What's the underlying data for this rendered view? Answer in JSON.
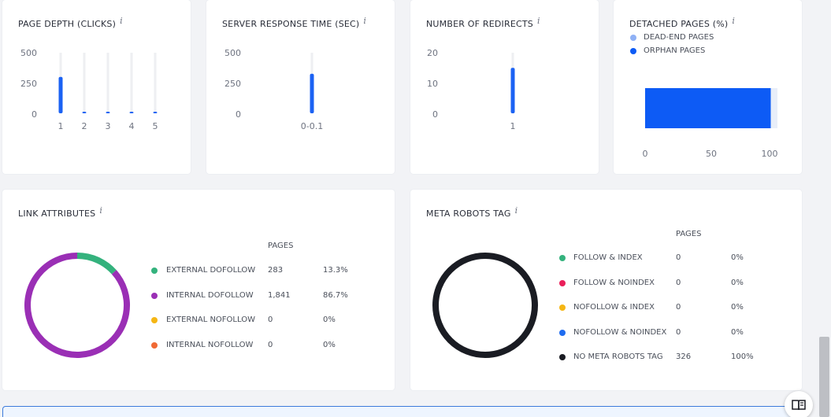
{
  "page_depth": {
    "title": "PAGE DEPTH (CLICKS)",
    "info": "i",
    "y_ticks": [
      "500",
      "250",
      "0"
    ],
    "chart_data": {
      "type": "bar",
      "title": "PAGE DEPTH (CLICKS)",
      "categories": [
        "1",
        "2",
        "3",
        "4",
        "5"
      ],
      "values": [
        300,
        4,
        4,
        4,
        4
      ],
      "ylim": [
        0,
        500
      ],
      "grid": false
    }
  },
  "server_response": {
    "title": "SERVER RESPONSE TIME (SEC)",
    "info": "i",
    "y_ticks": [
      "500",
      "250",
      "0"
    ],
    "chart_data": {
      "type": "bar",
      "title": "SERVER RESPONSE TIME (SEC)",
      "categories": [
        "0-0.1"
      ],
      "values": [
        326
      ],
      "ylim": [
        0,
        500
      ],
      "grid": false
    }
  },
  "redirects": {
    "title": "NUMBER OF REDIRECTS",
    "info": "i",
    "y_ticks": [
      "20",
      "10",
      "0"
    ],
    "chart_data": {
      "type": "bar",
      "title": "NUMBER OF REDIRECTS",
      "categories": [
        "1"
      ],
      "values": [
        15
      ],
      "ylim": [
        0,
        20
      ],
      "grid": false
    }
  },
  "detached": {
    "title": "DETACHED PAGES (%)",
    "info": "i",
    "legend": [
      {
        "label": "DEAD-END PAGES",
        "color": "#8fb1f5"
      },
      {
        "label": "ORPHAN PAGES",
        "color": "#0d5bf5"
      }
    ],
    "x_ticks": [
      "0",
      "50",
      "100"
    ],
    "chart_data": {
      "type": "bar",
      "orientation": "horizontal",
      "title": "DETACHED PAGES (%)",
      "series": [
        {
          "name": "DEAD-END PAGES",
          "values": [
            5
          ]
        },
        {
          "name": "ORPHAN PAGES",
          "values": [
            95
          ]
        }
      ],
      "xlim": [
        0,
        100
      ],
      "legend_position": "top-left"
    }
  },
  "link_attributes": {
    "title": "LINK ATTRIBUTES",
    "info": "i",
    "pages_header": "PAGES",
    "rows": [
      {
        "label": "EXTERNAL DOFOLLOW",
        "pages": "283",
        "percent": "13.3%",
        "color": "#34b27d"
      },
      {
        "label": "INTERNAL DOFOLLOW",
        "pages": "1,841",
        "percent": "86.7%",
        "color": "#9a2fb5"
      },
      {
        "label": "EXTERNAL NOFOLLOW",
        "pages": "0",
        "percent": "0%",
        "color": "#f5b614"
      },
      {
        "label": "INTERNAL NOFOLLOW",
        "pages": "0",
        "percent": "0%",
        "color": "#f06a35"
      }
    ],
    "chart_data": {
      "type": "pie",
      "title": "LINK ATTRIBUTES",
      "categories": [
        "EXTERNAL DOFOLLOW",
        "INTERNAL DOFOLLOW",
        "EXTERNAL NOFOLLOW",
        "INTERNAL NOFOLLOW"
      ],
      "values": [
        283,
        1841,
        0,
        0
      ],
      "colors": [
        "#34b27d",
        "#9a2fb5",
        "#f5b614",
        "#f06a35"
      ]
    }
  },
  "meta_robots": {
    "title": "META ROBOTS TAG",
    "info": "i",
    "pages_header": "PAGES",
    "rows": [
      {
        "label": "FOLLOW & INDEX",
        "pages": "0",
        "percent": "0%",
        "color": "#34b27d"
      },
      {
        "label": "FOLLOW & NOINDEX",
        "pages": "0",
        "percent": "0%",
        "color": "#ea1f5a"
      },
      {
        "label": "NOFOLLOW & INDEX",
        "pages": "0",
        "percent": "0%",
        "color": "#f5b614"
      },
      {
        "label": "NOFOLLOW & NOINDEX",
        "pages": "0",
        "percent": "0%",
        "color": "#1f6cf0"
      },
      {
        "label": "NO META ROBOTS TAG",
        "pages": "326",
        "percent": "100%",
        "color": "#1a1c23"
      }
    ],
    "chart_data": {
      "type": "pie",
      "title": "META ROBOTS TAG",
      "categories": [
        "FOLLOW & INDEX",
        "FOLLOW & NOINDEX",
        "NOFOLLOW & INDEX",
        "NOFOLLOW & NOINDEX",
        "NO META ROBOTS TAG"
      ],
      "values": [
        0,
        0,
        0,
        0,
        326
      ],
      "colors": [
        "#34b27d",
        "#ea1f5a",
        "#f5b614",
        "#1f6cf0",
        "#1a1c23"
      ]
    }
  },
  "help_button": {
    "icon": "book-icon"
  }
}
